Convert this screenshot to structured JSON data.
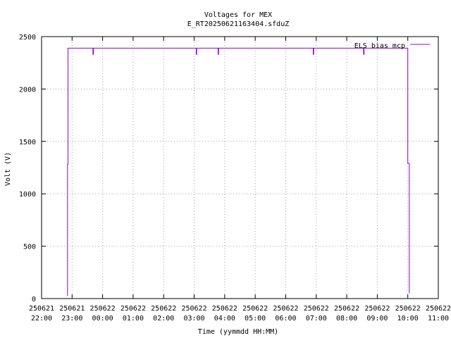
{
  "chart_data": {
    "type": "line",
    "title": "Voltages for MEX",
    "subtitle": "E_RT20250621163404.sfduZ",
    "xlabel": "Time (yymmdd HH:MM)",
    "ylabel": "Volt (V)",
    "xlim": [
      "2025-06-21 22:00",
      "2025-06-22 11:00"
    ],
    "ylim": [
      0,
      2500
    ],
    "grid": true,
    "legend_position": "top-right",
    "x_ticks": [
      {
        "date": "250621",
        "time": "22:00"
      },
      {
        "date": "250621",
        "time": "23:00"
      },
      {
        "date": "250622",
        "time": "00:00"
      },
      {
        "date": "250622",
        "time": "01:00"
      },
      {
        "date": "250622",
        "time": "02:00"
      },
      {
        "date": "250622",
        "time": "03:00"
      },
      {
        "date": "250622",
        "time": "04:00"
      },
      {
        "date": "250622",
        "time": "05:00"
      },
      {
        "date": "250622",
        "time": "06:00"
      },
      {
        "date": "250622",
        "time": "07:00"
      },
      {
        "date": "250622",
        "time": "08:00"
      },
      {
        "date": "250622",
        "time": "09:00"
      },
      {
        "date": "250622",
        "time": "10:00"
      },
      {
        "date": "250622",
        "time": "11:00"
      }
    ],
    "y_ticks": [
      "0",
      "500",
      "1000",
      "1500",
      "2000",
      "2500"
    ],
    "series": [
      {
        "name": "ELS bias mcp",
        "color": "#9400d3",
        "points": [
          [
            "2025-06-21 22:50",
            30
          ],
          [
            "2025-06-21 22:51",
            30
          ],
          [
            "2025-06-21 22:51",
            1280
          ],
          [
            "2025-06-21 22:52",
            1280
          ],
          [
            "2025-06-21 22:52",
            2390
          ],
          [
            "2025-06-21 23:41",
            2390
          ],
          [
            "2025-06-21 23:41",
            2330
          ],
          [
            "2025-06-21 23:42",
            2330
          ],
          [
            "2025-06-21 23:42",
            2390
          ],
          [
            "2025-06-22 03:04",
            2390
          ],
          [
            "2025-06-22 03:04",
            2330
          ],
          [
            "2025-06-22 03:05",
            2330
          ],
          [
            "2025-06-22 03:05",
            2390
          ],
          [
            "2025-06-22 03:47",
            2390
          ],
          [
            "2025-06-22 03:47",
            2330
          ],
          [
            "2025-06-22 03:48",
            2330
          ],
          [
            "2025-06-22 03:48",
            2390
          ],
          [
            "2025-06-22 06:54",
            2390
          ],
          [
            "2025-06-22 06:54",
            2330
          ],
          [
            "2025-06-22 06:55",
            2330
          ],
          [
            "2025-06-22 06:55",
            2390
          ],
          [
            "2025-06-22 08:33",
            2390
          ],
          [
            "2025-06-22 08:33",
            2330
          ],
          [
            "2025-06-22 08:34",
            2330
          ],
          [
            "2025-06-22 08:34",
            2390
          ],
          [
            "2025-06-22 10:00",
            2390
          ],
          [
            "2025-06-22 10:00",
            1290
          ],
          [
            "2025-06-22 10:03",
            1290
          ],
          [
            "2025-06-22 10:03",
            50
          ]
        ]
      }
    ]
  }
}
